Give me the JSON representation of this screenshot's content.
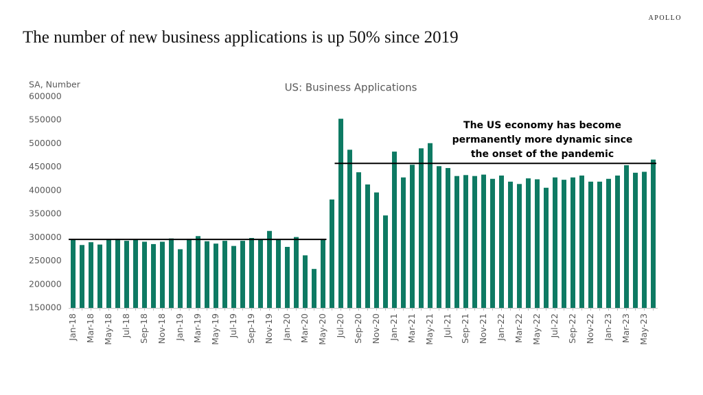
{
  "brand": "APOLLO",
  "headline": "The number of new business applications is up 50% since 2019",
  "chart_data": {
    "type": "bar",
    "title": "US: Business Applications",
    "y_label": "SA, Number",
    "color": "#0e7a63",
    "categories": [
      "Jan-18",
      null,
      "Mar-18",
      null,
      "May-18",
      null,
      "Jul-18",
      null,
      "Sep-18",
      null,
      "Nov-18",
      null,
      "Jan-19",
      null,
      "Mar-19",
      null,
      "May-19",
      null,
      "Jul-19",
      null,
      "Sep-19",
      null,
      "Nov-19",
      null,
      "Jan-20",
      null,
      "Mar-20",
      null,
      "May-20",
      null,
      "Jul-20",
      null,
      "Sep-20",
      null,
      "Nov-20",
      null,
      "Jan-21",
      null,
      "Mar-21",
      null,
      "May-21",
      null,
      "Jul-21",
      null,
      "Sep-21",
      null,
      "Nov-21",
      null,
      "Jan-22",
      null,
      "Mar-22",
      null,
      "May-22",
      null,
      "Jul-22",
      null,
      "Sep-22",
      null,
      "Nov-22",
      null,
      "Jan-23",
      null,
      "Mar-23",
      null,
      "May-23",
      null
    ],
    "values": [
      296000,
      284000,
      290000,
      285000,
      295000,
      297000,
      293000,
      296000,
      291000,
      286000,
      291000,
      298000,
      275000,
      297000,
      303000,
      292000,
      287000,
      293000,
      282000,
      293000,
      299000,
      296000,
      314000,
      296000,
      280000,
      301000,
      262000,
      233000,
      297000,
      381000,
      553000,
      487000,
      439000,
      413000,
      396000,
      347000,
      483000,
      428000,
      455000,
      490000,
      501000,
      452000,
      448000,
      431000,
      433000,
      431000,
      434000,
      425000,
      432000,
      419000,
      414000,
      426000,
      424000,
      406000,
      428000,
      423000,
      428000,
      432000,
      419000,
      419000,
      425000,
      432000,
      454000,
      438000,
      440000,
      466000
    ],
    "ylim": [
      150000,
      600000
    ],
    "yticks": [
      150000,
      200000,
      250000,
      300000,
      350000,
      400000,
      450000,
      500000,
      550000,
      600000
    ],
    "grid": false,
    "reference_lines": [
      {
        "value": 296000,
        "to": "May-20"
      },
      {
        "value": 458000,
        "from": "Jul-20"
      }
    ],
    "annotation": [
      "The US economy has become",
      "permanently more dynamic since",
      "the onset of the pandemic"
    ]
  }
}
